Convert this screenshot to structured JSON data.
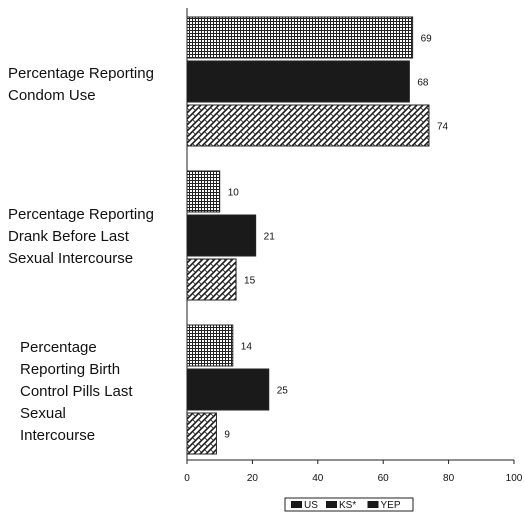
{
  "chart_data": {
    "type": "bar",
    "orientation": "horizontal",
    "categories": [
      "Percentage Reporting Condom Use",
      "Percentage Reporting Drank Before Last Sexual Intercourse",
      "Percentage Reporting Birth Control Pills Last Sexual Intercourse"
    ],
    "category_lines": [
      [
        "Percentage Reporting",
        "Condom Use"
      ],
      [
        "Percentage Reporting",
        "Drank Before Last",
        "Sexual Intercourse"
      ],
      [
        "Percentage",
        "Reporting Birth",
        "Control Pills Last",
        "Sexual",
        "Intercourse"
      ]
    ],
    "series": [
      {
        "name": "US",
        "values": [
          69,
          10,
          14
        ],
        "pattern": "grid"
      },
      {
        "name": "KS*",
        "values": [
          68,
          21,
          25
        ],
        "pattern": "solid"
      },
      {
        "name": "YEP",
        "values": [
          74,
          15,
          9
        ],
        "pattern": "weave"
      }
    ],
    "xlim": [
      0,
      100
    ],
    "xticks": [
      0,
      20,
      40,
      60,
      80,
      100
    ],
    "xlabel": "",
    "ylabel": "",
    "title": "",
    "legend_position": "bottom",
    "grid": false,
    "colors": {
      "solid": "#1a1a1a",
      "line": "#222222"
    }
  }
}
